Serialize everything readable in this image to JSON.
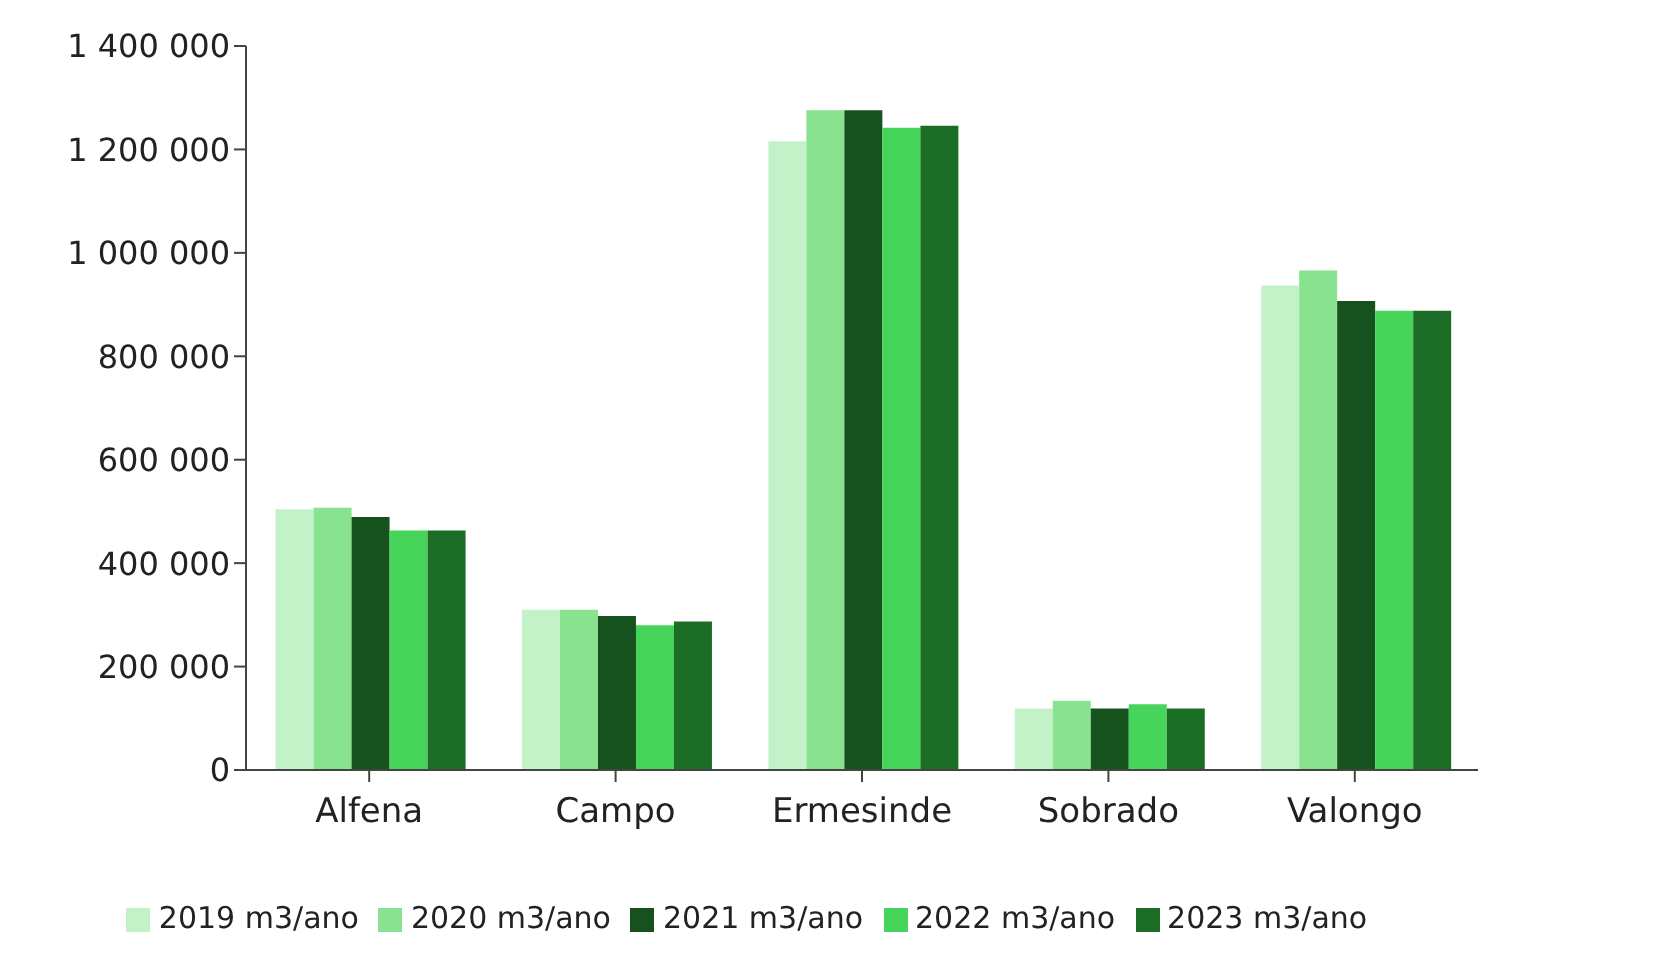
{
  "chart_data": {
    "type": "bar",
    "categories": [
      "Alfena",
      "Campo",
      "Ermesinde",
      "Sobrado",
      "Valongo"
    ],
    "series": [
      {
        "name": "2019 m3/ano",
        "color": "#c3f1c8",
        "values": [
          504000,
          310000,
          1216000,
          119000,
          937000
        ]
      },
      {
        "name": "2020 m3/ano",
        "color": "#88e290",
        "values": [
          507000,
          310000,
          1276000,
          134000,
          966000
        ]
      },
      {
        "name": "2021 m3/ano",
        "color": "#16521e",
        "values": [
          489000,
          298000,
          1276000,
          119000,
          907000
        ]
      },
      {
        "name": "2022 m3/ano",
        "color": "#47d45a",
        "values": [
          463000,
          280000,
          1242000,
          127000,
          888000
        ]
      },
      {
        "name": "2023 m3/ano",
        "color": "#1c6e27",
        "values": [
          463000,
          287000,
          1246000,
          119000,
          888000
        ]
      }
    ],
    "ylim": [
      0,
      1400000
    ],
    "yticks": [
      {
        "value": 0,
        "label": "0"
      },
      {
        "value": 200000,
        "label": "200 000"
      },
      {
        "value": 400000,
        "label": "400 000"
      },
      {
        "value": 600000,
        "label": "600 000"
      },
      {
        "value": 800000,
        "label": "800 000"
      },
      {
        "value": 1000000,
        "label": "1 000 000"
      },
      {
        "value": 1200000,
        "label": "1 200 000"
      },
      {
        "value": 1400000,
        "label": "1 400 000"
      }
    ],
    "grid": false,
    "legend": "bottom"
  }
}
